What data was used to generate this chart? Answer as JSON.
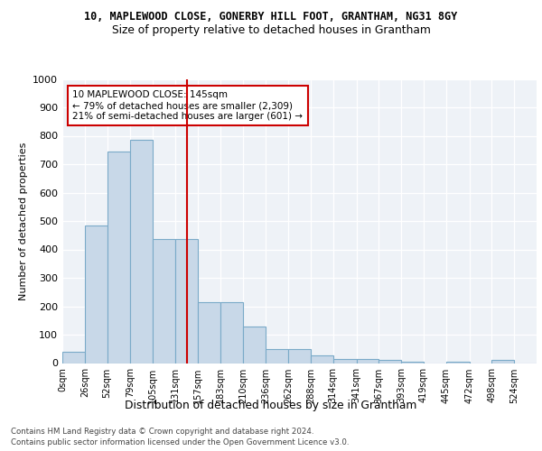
{
  "title1": "10, MAPLEWOOD CLOSE, GONERBY HILL FOOT, GRANTHAM, NG31 8GY",
  "title2": "Size of property relative to detached houses in Grantham",
  "xlabel": "Distribution of detached houses by size in Grantham",
  "ylabel": "Number of detached properties",
  "bar_color": "#c8d8e8",
  "bar_edge_color": "#7aaac8",
  "bins": [
    "0sqm",
    "26sqm",
    "52sqm",
    "79sqm",
    "105sqm",
    "131sqm",
    "157sqm",
    "183sqm",
    "210sqm",
    "236sqm",
    "262sqm",
    "288sqm",
    "314sqm",
    "341sqm",
    "367sqm",
    "393sqm",
    "419sqm",
    "445sqm",
    "472sqm",
    "498sqm",
    "524sqm"
  ],
  "values": [
    40,
    485,
    745,
    785,
    435,
    435,
    215,
    215,
    127,
    50,
    50,
    28,
    14,
    14,
    10,
    5,
    0,
    5,
    0,
    10,
    0
  ],
  "property_sqm": 145,
  "bin_edges_sqm": [
    0,
    26,
    52,
    79,
    105,
    131,
    157,
    183,
    210,
    236,
    262,
    288,
    314,
    341,
    367,
    393,
    419,
    445,
    472,
    498,
    524,
    550
  ],
  "annotation_text": "10 MAPLEWOOD CLOSE: 145sqm\n← 79% of detached houses are smaller (2,309)\n21% of semi-detached houses are larger (601) →",
  "annotation_box_color": "#ffffff",
  "annotation_box_edge_color": "#cc0000",
  "vline_color": "#cc0000",
  "ylim": [
    0,
    1000
  ],
  "yticks": [
    0,
    100,
    200,
    300,
    400,
    500,
    600,
    700,
    800,
    900,
    1000
  ],
  "footer1": "Contains HM Land Registry data © Crown copyright and database right 2024.",
  "footer2": "Contains public sector information licensed under the Open Government Licence v3.0.",
  "background_color": "#eef2f7",
  "grid_color": "#ffffff"
}
